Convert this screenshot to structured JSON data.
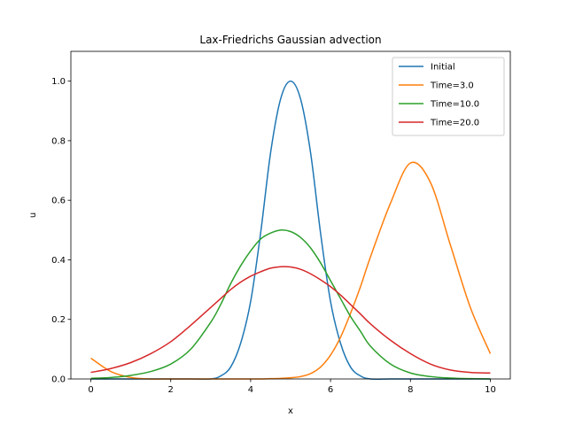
{
  "chart_data": {
    "type": "line",
    "title": "Lax-Friedrichs Gaussian advection",
    "xlabel": "x",
    "ylabel": "u",
    "xlim": [
      -0.5,
      10.5
    ],
    "ylim": [
      0.0,
      1.1
    ],
    "xticks": [
      0,
      2,
      4,
      6,
      8,
      10
    ],
    "yticks": [
      0.0,
      0.2,
      0.4,
      0.6,
      0.8,
      1.0
    ],
    "xtick_labels": [
      "0",
      "2",
      "4",
      "6",
      "8",
      "10"
    ],
    "ytick_labels": [
      "0.0",
      "0.2",
      "0.4",
      "0.6",
      "0.8",
      "1.0"
    ],
    "grid": false,
    "legend_position": "top-right",
    "x": [
      0,
      0.5,
      1,
      1.5,
      2,
      2.5,
      3,
      3.25,
      3.5,
      3.75,
      4,
      4.25,
      4.5,
      4.75,
      5,
      5.25,
      5.5,
      5.75,
      6,
      6.25,
      6.5,
      6.75,
      7,
      7.5,
      8,
      8.5,
      9,
      9.5,
      10
    ],
    "series": [
      {
        "name": "Initial",
        "color": "#1f77b4",
        "values": [
          0.0,
          0.0,
          0.0,
          0.0,
          0.0,
          0.0,
          0.0,
          0.01,
          0.04,
          0.12,
          0.26,
          0.49,
          0.76,
          0.94,
          1.0,
          0.94,
          0.76,
          0.49,
          0.26,
          0.12,
          0.04,
          0.01,
          0.0,
          0.0,
          0.0,
          0.0,
          0.0,
          0.0,
          0.0
        ]
      },
      {
        "name": "Time=3.0",
        "color": "#ff7f0e",
        "values": [
          0.07,
          0.025,
          0.005,
          0.0,
          0.0,
          0.0,
          0.0,
          0.0,
          0.0,
          0.0,
          0.0,
          0.0,
          0.001,
          0.002,
          0.004,
          0.008,
          0.018,
          0.04,
          0.08,
          0.14,
          0.22,
          0.31,
          0.41,
          0.59,
          0.725,
          0.66,
          0.45,
          0.24,
          0.085
        ]
      },
      {
        "name": "Time=10.0",
        "color": "#2ca02c",
        "values": [
          0.002,
          0.005,
          0.012,
          0.025,
          0.05,
          0.1,
          0.19,
          0.25,
          0.32,
          0.38,
          0.43,
          0.47,
          0.49,
          0.5,
          0.495,
          0.475,
          0.44,
          0.39,
          0.33,
          0.27,
          0.21,
          0.16,
          0.11,
          0.05,
          0.02,
          0.008,
          0.003,
          0.001,
          0.0
        ]
      },
      {
        "name": "Time=20.0",
        "color": "#d62728",
        "values": [
          0.022,
          0.035,
          0.055,
          0.085,
          0.125,
          0.18,
          0.24,
          0.27,
          0.3,
          0.325,
          0.345,
          0.36,
          0.372,
          0.377,
          0.376,
          0.368,
          0.353,
          0.333,
          0.31,
          0.282,
          0.25,
          0.218,
          0.185,
          0.13,
          0.085,
          0.05,
          0.03,
          0.022,
          0.02
        ]
      }
    ]
  }
}
